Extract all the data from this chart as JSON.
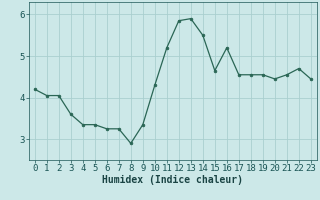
{
  "x": [
    0,
    1,
    2,
    3,
    4,
    5,
    6,
    7,
    8,
    9,
    10,
    11,
    12,
    13,
    14,
    15,
    16,
    17,
    18,
    19,
    20,
    21,
    22,
    23
  ],
  "y": [
    4.2,
    4.05,
    4.05,
    3.6,
    3.35,
    3.35,
    3.25,
    3.25,
    2.9,
    3.35,
    4.3,
    5.2,
    5.85,
    5.9,
    5.5,
    4.65,
    5.2,
    4.55,
    4.55,
    4.55,
    4.45,
    4.55,
    4.7,
    4.45
  ],
  "line_color": "#2a6655",
  "marker_color": "#2a6655",
  "bg_color": "#cce8e8",
  "grid_color": "#aacfcf",
  "tick_label_color": "#1a5555",
  "xlabel": "Humidex (Indice chaleur)",
  "ylim": [
    2.5,
    6.3
  ],
  "yticks": [
    3,
    4,
    5,
    6
  ],
  "xticks": [
    0,
    1,
    2,
    3,
    4,
    5,
    6,
    7,
    8,
    9,
    10,
    11,
    12,
    13,
    14,
    15,
    16,
    17,
    18,
    19,
    20,
    21,
    22,
    23
  ],
  "xlabel_color": "#1a4444",
  "xlabel_fontsize": 7.0,
  "tick_fontsize": 6.5
}
